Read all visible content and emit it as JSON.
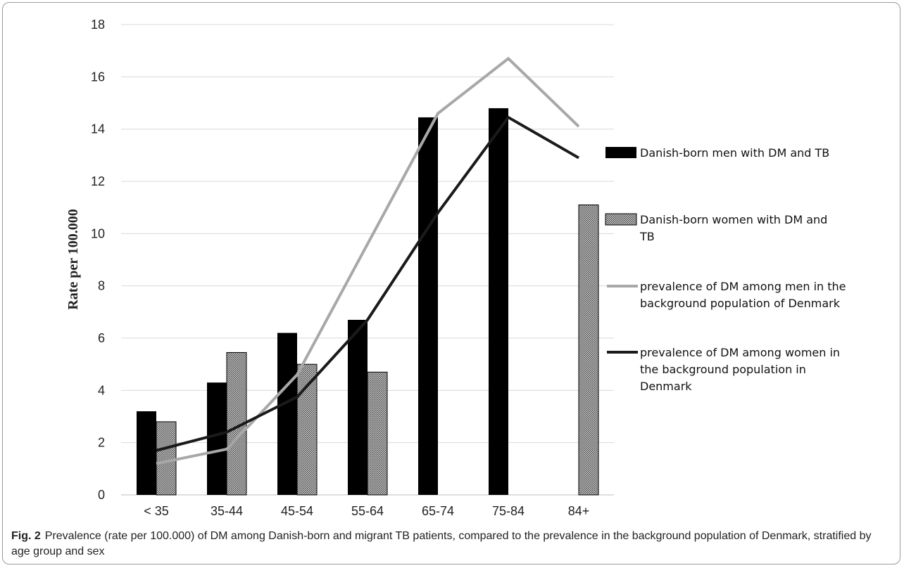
{
  "caption": {
    "label": "Fig. 2",
    "text": "Prevalence (rate per 100.000) of DM among Danish-born and migrant TB patients, compared to the prevalence in the background population of Denmark, stratified by age group and sex"
  },
  "chart_data": {
    "type": "bar",
    "ylabel": "Rate per 100.000",
    "xlabel": "",
    "ylim": [
      0,
      18
    ],
    "yticks": [
      0,
      2,
      4,
      6,
      8,
      10,
      12,
      14,
      16,
      18
    ],
    "grid": true,
    "legend_position": "right",
    "categories": [
      "< 35",
      "35-44",
      "45-54",
      "55-64",
      "65-74",
      "75-84",
      "84+"
    ],
    "series": [
      {
        "name": "Danish-born men with DM and TB",
        "kind": "bar",
        "pattern": "solid",
        "color": "#000000",
        "legend_lines": [
          "Danish-born men with DM and TB"
        ],
        "values": [
          3.2,
          4.3,
          6.2,
          6.7,
          14.45,
          14.8,
          null
        ]
      },
      {
        "name": "Danish-born women with DM and TB",
        "kind": "bar",
        "pattern": "crosshatch",
        "color": "#8a8a8a",
        "legend_lines": [
          "Danish-born women with DM and",
          "TB"
        ],
        "values": [
          2.8,
          5.45,
          5.0,
          4.7,
          null,
          null,
          11.1
        ]
      },
      {
        "name": "prevalence of DM among men in the background population of Denmark",
        "kind": "line",
        "color": "#a8a8a8",
        "legend_lines": [
          "prevalence of DM among men in the",
          "background population of Denmark"
        ],
        "values": [
          1.2,
          1.75,
          4.6,
          9.6,
          14.6,
          16.7,
          14.1
        ]
      },
      {
        "name": "prevalence of DM among women in the background population in Denmark",
        "kind": "line",
        "color": "#1a1a1a",
        "legend_lines": [
          "prevalence of DM among women in",
          "the background population in",
          "Denmark"
        ],
        "values": [
          1.7,
          2.4,
          3.75,
          6.7,
          10.8,
          14.45,
          12.9
        ]
      }
    ]
  }
}
